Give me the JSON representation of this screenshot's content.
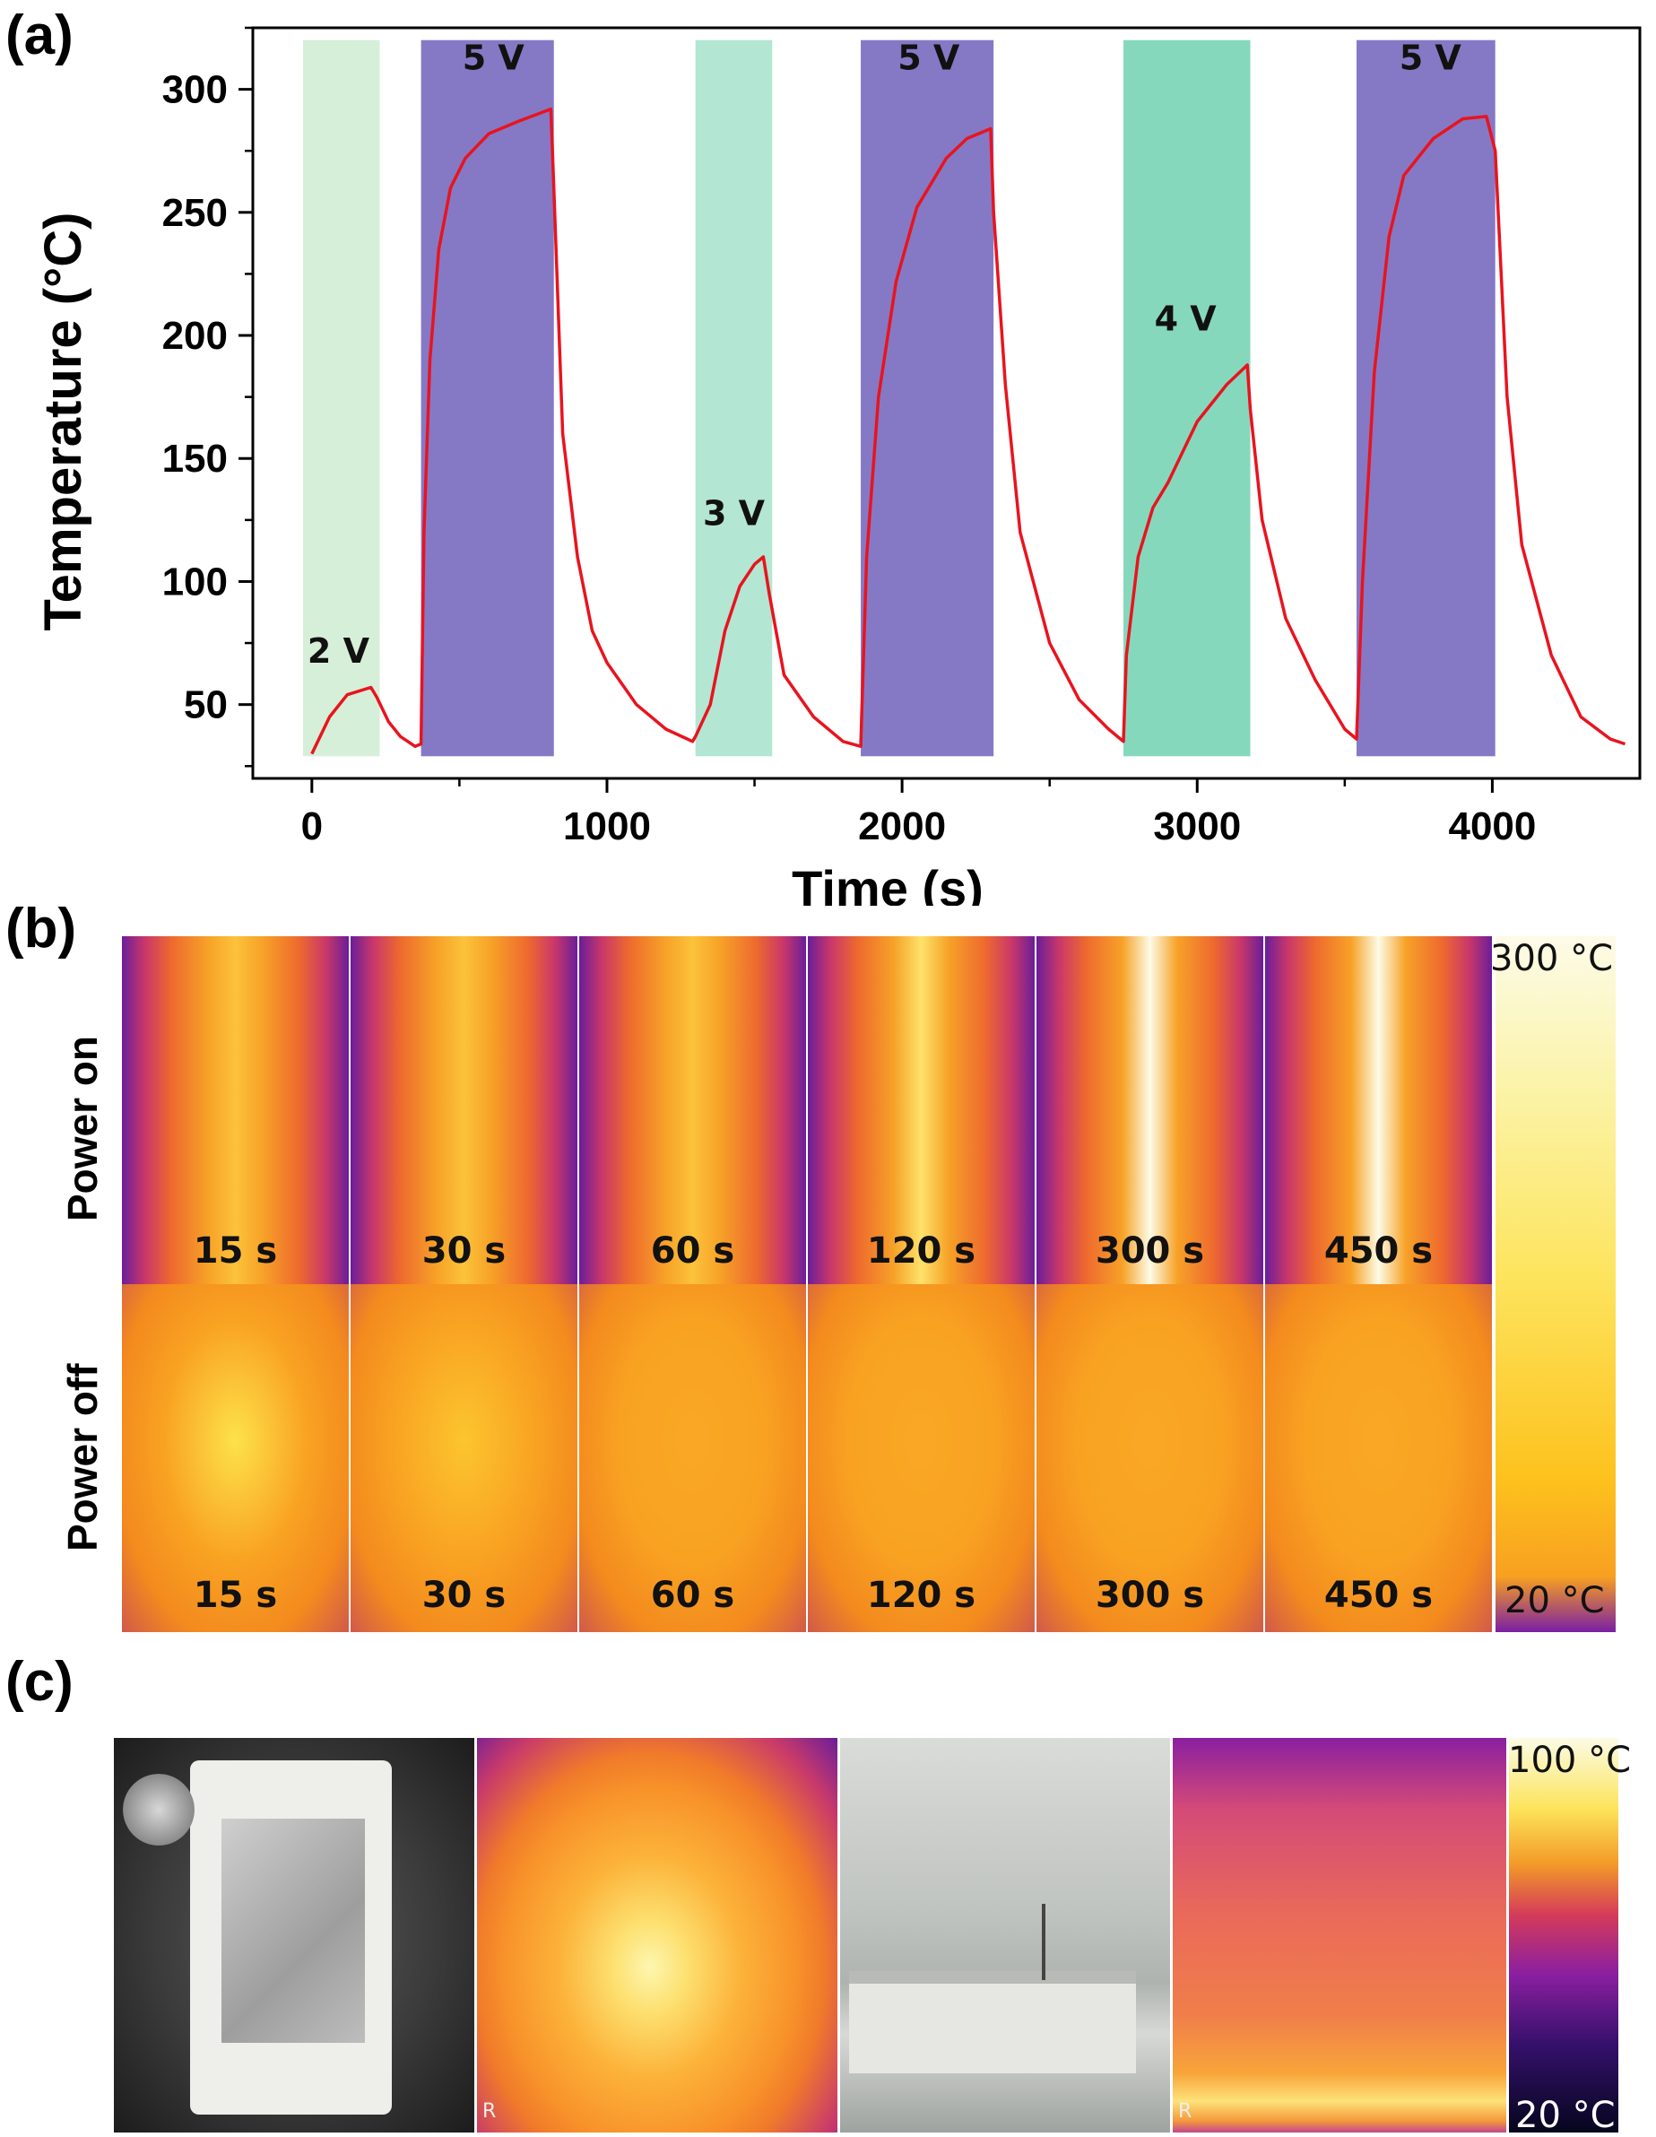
{
  "panels": {
    "a": "(a)",
    "b": "(b)",
    "c": "(c)"
  },
  "chart_data": {
    "type": "line",
    "title": "",
    "xlabel": "Time (s)",
    "ylabel": "Temperature (°C)",
    "xlim": [
      -200,
      4500
    ],
    "ylim": [
      20,
      325
    ],
    "xticks": [
      0,
      1000,
      2000,
      3000,
      4000
    ],
    "yticks": [
      50,
      100,
      150,
      200,
      250,
      300
    ],
    "grid": false,
    "bands": [
      {
        "label": "2 V",
        "x0": -30,
        "x1": 230,
        "color": "#d6efd8",
        "label_x": 90,
        "label_y": 67
      },
      {
        "label": "5 V",
        "x0": 370,
        "x1": 820,
        "color": "#8579c6",
        "label_x": 615,
        "label_y": 308
      },
      {
        "label": "3 V",
        "x0": 1300,
        "x1": 1560,
        "color": "#b3e6d3",
        "label_x": 1430,
        "label_y": 123
      },
      {
        "label": "5 V",
        "x0": 1860,
        "x1": 2310,
        "color": "#8579c6",
        "label_x": 2090,
        "label_y": 308
      },
      {
        "label": "4 V",
        "x0": 2750,
        "x1": 3180,
        "color": "#86d8bd",
        "label_x": 2960,
        "label_y": 202
      },
      {
        "label": "5 V",
        "x0": 3540,
        "x1": 4010,
        "color": "#8579c6",
        "label_x": 3790,
        "label_y": 308
      }
    ],
    "series": [
      {
        "name": "Temperature",
        "color": "#e8141e",
        "x": [
          0,
          60,
          120,
          200,
          220,
          260,
          300,
          350,
          370,
          380,
          400,
          430,
          470,
          520,
          600,
          700,
          810,
          820,
          850,
          900,
          950,
          1000,
          1100,
          1200,
          1290,
          1300,
          1350,
          1400,
          1450,
          1500,
          1530,
          1550,
          1600,
          1700,
          1800,
          1860,
          1880,
          1920,
          1980,
          2050,
          2150,
          2220,
          2300,
          2310,
          2350,
          2400,
          2500,
          2600,
          2700,
          2750,
          2760,
          2800,
          2850,
          2900,
          3000,
          3100,
          3170,
          3180,
          3220,
          3300,
          3400,
          3500,
          3540,
          3560,
          3600,
          3650,
          3700,
          3800,
          3900,
          3980,
          4010,
          4050,
          4100,
          4200,
          4300,
          4400,
          4450
        ],
        "y": [
          30,
          45,
          54,
          57,
          53,
          43,
          37,
          33,
          34,
          120,
          190,
          235,
          260,
          272,
          282,
          287,
          292,
          260,
          160,
          110,
          80,
          67,
          50,
          40,
          35,
          37,
          50,
          80,
          98,
          107,
          110,
          95,
          62,
          45,
          35,
          33,
          110,
          175,
          222,
          252,
          272,
          280,
          284,
          250,
          180,
          120,
          75,
          52,
          40,
          35,
          70,
          110,
          130,
          140,
          165,
          180,
          188,
          170,
          125,
          85,
          60,
          40,
          36,
          100,
          185,
          240,
          265,
          280,
          288,
          289,
          275,
          175,
          115,
          70,
          45,
          36,
          34
        ]
      }
    ]
  },
  "ir_panel": {
    "row_on_label": "Power on",
    "row_off_label": "Power off",
    "on_times": [
      "15 s",
      "30 s",
      "60 s",
      "120 s",
      "300 s",
      "450 s"
    ],
    "on_hot": [
      0.52,
      0.56,
      0.6,
      0.66,
      0.86,
      0.98
    ],
    "off_times": [
      "15 s",
      "30 s",
      "60 s",
      "120 s",
      "300 s",
      "450 s"
    ],
    "off_hot": [
      0.6,
      0.5,
      0.44,
      0.4,
      0.38,
      0.37
    ],
    "scale_max": "300 °C",
    "scale_min": "20 °C"
  },
  "photo_panel": {
    "scale_max": "100 °C",
    "scale_min": "20 °C",
    "corner_mark": "R"
  }
}
